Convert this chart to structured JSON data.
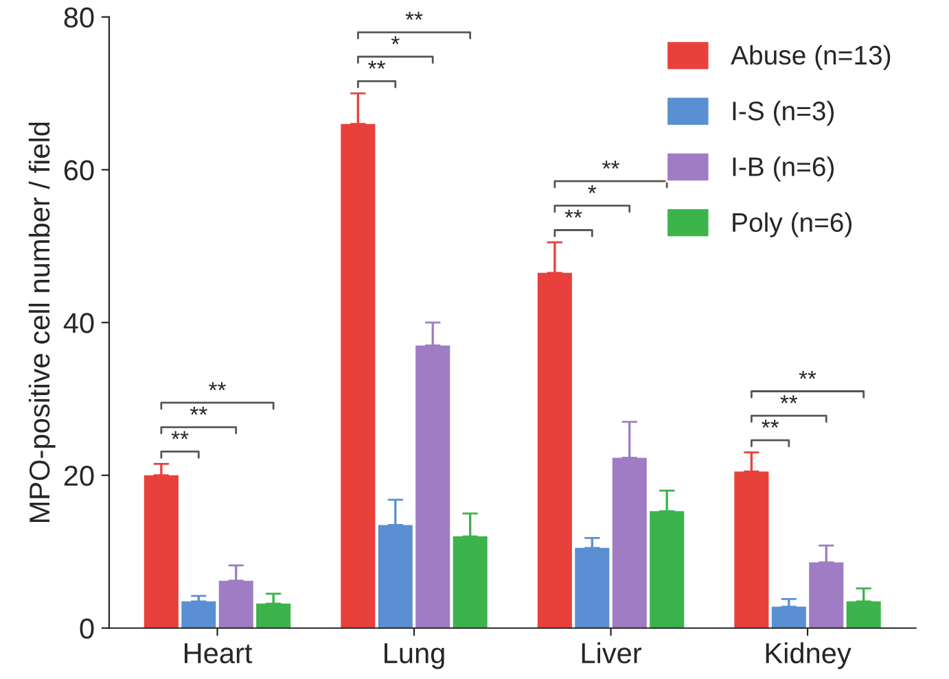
{
  "chart_data": {
    "type": "bar",
    "ylabel": "MPO-positive cell number / field",
    "categories": [
      "Heart",
      "Lung",
      "Liver",
      "Kidney"
    ],
    "ylim": [
      0,
      80
    ],
    "yticks": [
      0,
      20,
      40,
      60,
      80
    ],
    "legend": "top right",
    "series": [
      {
        "name": "Abuse (n=13)",
        "color": "#e8413c",
        "values": [
          20,
          66,
          46.5,
          20.5
        ],
        "errors": [
          [
            20,
            21.5
          ],
          [
            66,
            70
          ],
          [
            46.5,
            50.5
          ],
          [
            20.5,
            23
          ]
        ]
      },
      {
        "name": "I-S (n=3)",
        "color": "#5b8fd4",
        "values": [
          3.5,
          13.5,
          10.5,
          2.8
        ],
        "errors": [
          [
            3.5,
            4.2
          ],
          [
            13.5,
            16.8
          ],
          [
            10.5,
            11.8
          ],
          [
            2.8,
            3.8
          ]
        ]
      },
      {
        "name": "I-B (n=6)",
        "color": "#a07cc4",
        "values": [
          6.2,
          37,
          22.3,
          8.6
        ],
        "errors": [
          [
            6.2,
            8.2
          ],
          [
            37,
            40
          ],
          [
            22.3,
            27
          ],
          [
            8.6,
            10.8
          ]
        ]
      },
      {
        "name": "Poly (n=6)",
        "color": "#3cb44b",
        "values": [
          3.2,
          12,
          15.3,
          3.5
        ],
        "errors": [
          [
            3.2,
            4.5
          ],
          [
            12,
            15
          ],
          [
            15.3,
            18
          ],
          [
            3.5,
            5.2
          ]
        ]
      }
    ],
    "annotations": [
      "**",
      "**",
      "**",
      "**",
      "*",
      "**",
      "**",
      "*",
      "**",
      "**",
      "**",
      "**"
    ]
  }
}
